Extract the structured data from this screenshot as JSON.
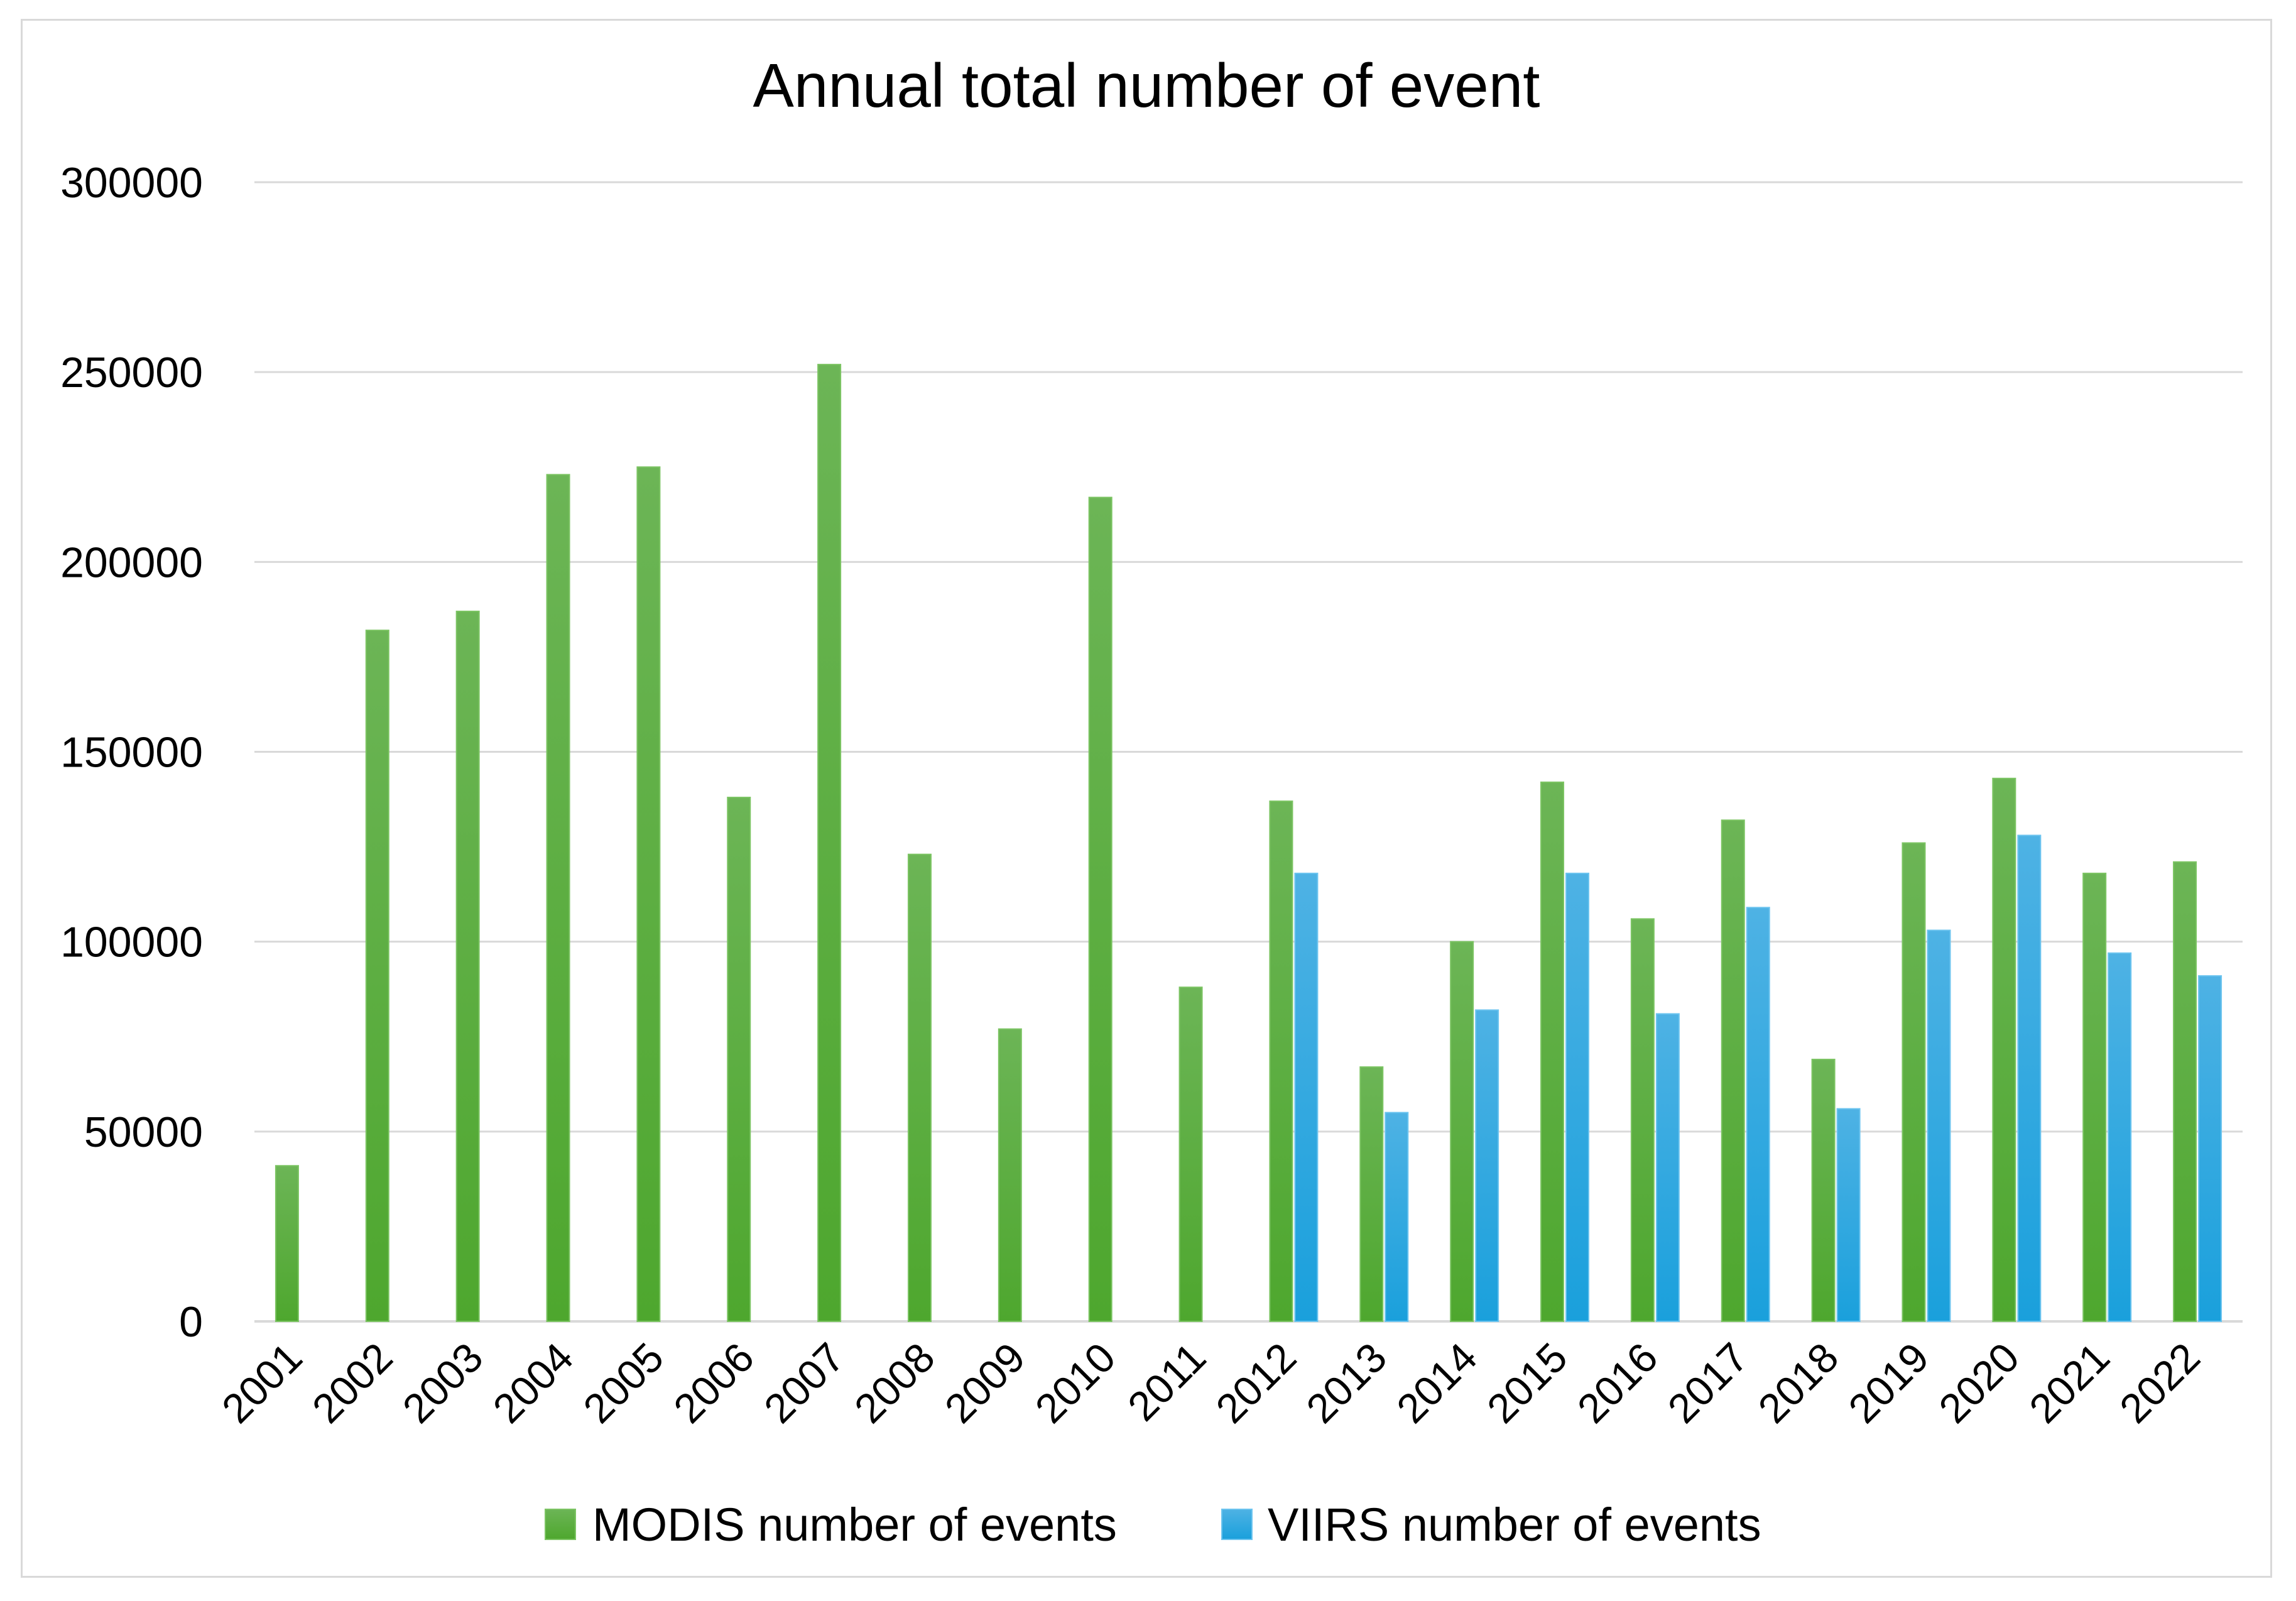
{
  "chart_data": {
    "type": "bar",
    "title": "Annual total number of event",
    "xlabel": "",
    "ylabel": "",
    "ylim": [
      0,
      300000
    ],
    "yticks": [
      0,
      50000,
      100000,
      150000,
      200000,
      250000,
      300000
    ],
    "ytick_labels": [
      "0",
      "50000",
      "100000",
      "150000",
      "200000",
      "250000",
      "300000"
    ],
    "grid": true,
    "legend_position": "bottom",
    "categories": [
      "2001",
      "2002",
      "2003",
      "2004",
      "2005",
      "2006",
      "2007",
      "2008",
      "2009",
      "2010",
      "2011",
      "2012",
      "2013",
      "2014",
      "2015",
      "2016",
      "2017",
      "2018",
      "2019",
      "2020",
      "2021",
      "2022"
    ],
    "series": [
      {
        "name": "MODIS number of events",
        "color": "#4ea72e",
        "values": [
          41000,
          182000,
          187000,
          223000,
          225000,
          138000,
          252000,
          123000,
          77000,
          217000,
          88000,
          137000,
          67000,
          100000,
          142000,
          106000,
          132000,
          69000,
          126000,
          143000,
          118000,
          121000
        ]
      },
      {
        "name": "VIIRS number of events",
        "color": "#1aa0dc",
        "values": [
          null,
          null,
          null,
          null,
          null,
          null,
          null,
          null,
          null,
          null,
          null,
          118000,
          55000,
          82000,
          118000,
          81000,
          109000,
          56000,
          103000,
          128000,
          97000,
          91000
        ]
      }
    ]
  },
  "colors": {
    "gridline": "#d9d9d9",
    "axis": "#d9d9d9",
    "frame": "#d9d9d9"
  }
}
